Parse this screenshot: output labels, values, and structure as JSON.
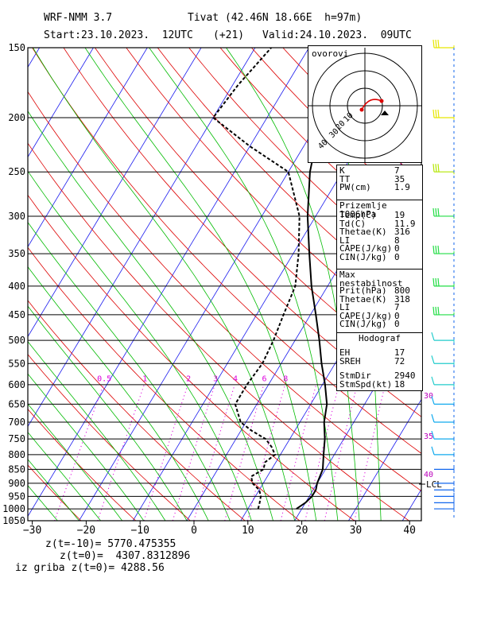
{
  "header": {
    "model": "WRF-NMM 3.7",
    "station": "Tivat (42.46N 18.66E  h=97m)",
    "start": "Start:23.10.2023.  12UTC",
    "lead": "(+21)",
    "valid": "Valid:24.10.2023.  09UTC"
  },
  "footer": {
    "line1": "z(t=-10)= 5770.475355",
    "line2": "z(t=0)=  4307.8312896",
    "line3": "iz griba z(t=0)= 4288.56"
  },
  "hodograph": {
    "label": "ovorovi",
    "ring_labels": [
      "10",
      "20",
      "30",
      "40"
    ]
  },
  "indices_box": {
    "rows": [
      {
        "key": "K",
        "value": "7"
      },
      {
        "key": "TT",
        "value": "35"
      },
      {
        "key": "PW(cm)",
        "value": "1.9"
      }
    ]
  },
  "surface_box": {
    "title": "Prizemlje 1006hPa",
    "rows": [
      {
        "key": "Temp(C)",
        "value": "19"
      },
      {
        "key": "Td(C)",
        "value": "11.9"
      },
      {
        "key": "Thetae(K)",
        "value": "316"
      },
      {
        "key": "LI",
        "value": "8"
      },
      {
        "key": "CAPE(J/kg)",
        "value": "0"
      },
      {
        "key": "CIN(J/kg)",
        "value": "0"
      }
    ]
  },
  "maxunstable_box": {
    "title": "Max nestabilnost",
    "rows": [
      {
        "key": "Prit(hPa)",
        "value": "800"
      },
      {
        "key": "Thetae(K)",
        "value": "318"
      },
      {
        "key": "LI",
        "value": "7"
      },
      {
        "key": "CAPE(J/kg)",
        "value": "0"
      },
      {
        "key": "CIN(J/kg)",
        "value": "0"
      }
    ]
  },
  "hodograf_box": {
    "title": "Hodograf",
    "rows": [
      {
        "key": "EH",
        "value": "17"
      },
      {
        "key": "SREH",
        "value": "72"
      },
      {
        "key": "StmDir",
        "value": "2940"
      },
      {
        "key": "StmSpd(kt)",
        "value": "18"
      }
    ]
  },
  "chart_data": {
    "type": "line",
    "xlabel": "",
    "ylabel": "",
    "x_ticks": [
      "−30",
      "−20",
      "−10",
      "0",
      "10",
      "20",
      "30",
      "40"
    ],
    "y_ticks": [
      "150",
      "200",
      "250",
      "300",
      "350",
      "400",
      "450",
      "500",
      "550",
      "600",
      "650",
      "700",
      "750",
      "800",
      "850",
      "900",
      "950",
      "1000",
      "1050"
    ],
    "mixing_ratio_labels": [
      "0.5",
      "1",
      "2",
      "3",
      "4",
      "6",
      "8"
    ],
    "thetae_labels": [
      "30",
      "35",
      "40"
    ],
    "lcl_label": "LCL",
    "colors": {
      "isotherm": "#1a1aee",
      "dry_adiabat": "#dd0000",
      "moist_adiabat": "#00bb00",
      "mixing_ratio": "#dd00dd",
      "thetae_label": "#bb00bb",
      "profile": "#000000"
    },
    "series": [
      {
        "name": "",
        "style": "solid",
        "points": [
          [
            1000,
            19
          ],
          [
            975,
            20
          ],
          [
            950,
            20.5
          ],
          [
            925,
            20.5
          ],
          [
            900,
            20
          ],
          [
            850,
            19.5
          ],
          [
            800,
            18
          ],
          [
            750,
            16.5
          ],
          [
            700,
            14.5
          ],
          [
            650,
            13
          ],
          [
            600,
            10.5
          ],
          [
            550,
            7.5
          ],
          [
            500,
            4.5
          ],
          [
            450,
            1
          ],
          [
            400,
            -3
          ],
          [
            350,
            -7
          ],
          [
            300,
            -11.5
          ],
          [
            250,
            -16
          ],
          [
            200,
            -20
          ],
          [
            150,
            -18
          ]
        ]
      },
      {
        "name": "",
        "style": "dashed",
        "points": [
          [
            1000,
            11.9
          ],
          [
            975,
            11.5
          ],
          [
            950,
            11
          ],
          [
            925,
            10
          ],
          [
            900,
            8
          ],
          [
            875,
            7
          ],
          [
            850,
            8.5
          ],
          [
            825,
            8
          ],
          [
            800,
            9
          ],
          [
            775,
            7.5
          ],
          [
            750,
            5.5
          ],
          [
            725,
            2
          ],
          [
            700,
            -1
          ],
          [
            650,
            -4
          ],
          [
            600,
            -4
          ],
          [
            550,
            -3.5
          ],
          [
            500,
            -4
          ],
          [
            450,
            -5
          ],
          [
            400,
            -6
          ],
          [
            350,
            -9
          ],
          [
            300,
            -13
          ],
          [
            250,
            -20
          ],
          [
            225,
            -30
          ],
          [
            200,
            -40
          ],
          [
            175,
            -39
          ],
          [
            150,
            -37
          ]
        ]
      }
    ]
  }
}
